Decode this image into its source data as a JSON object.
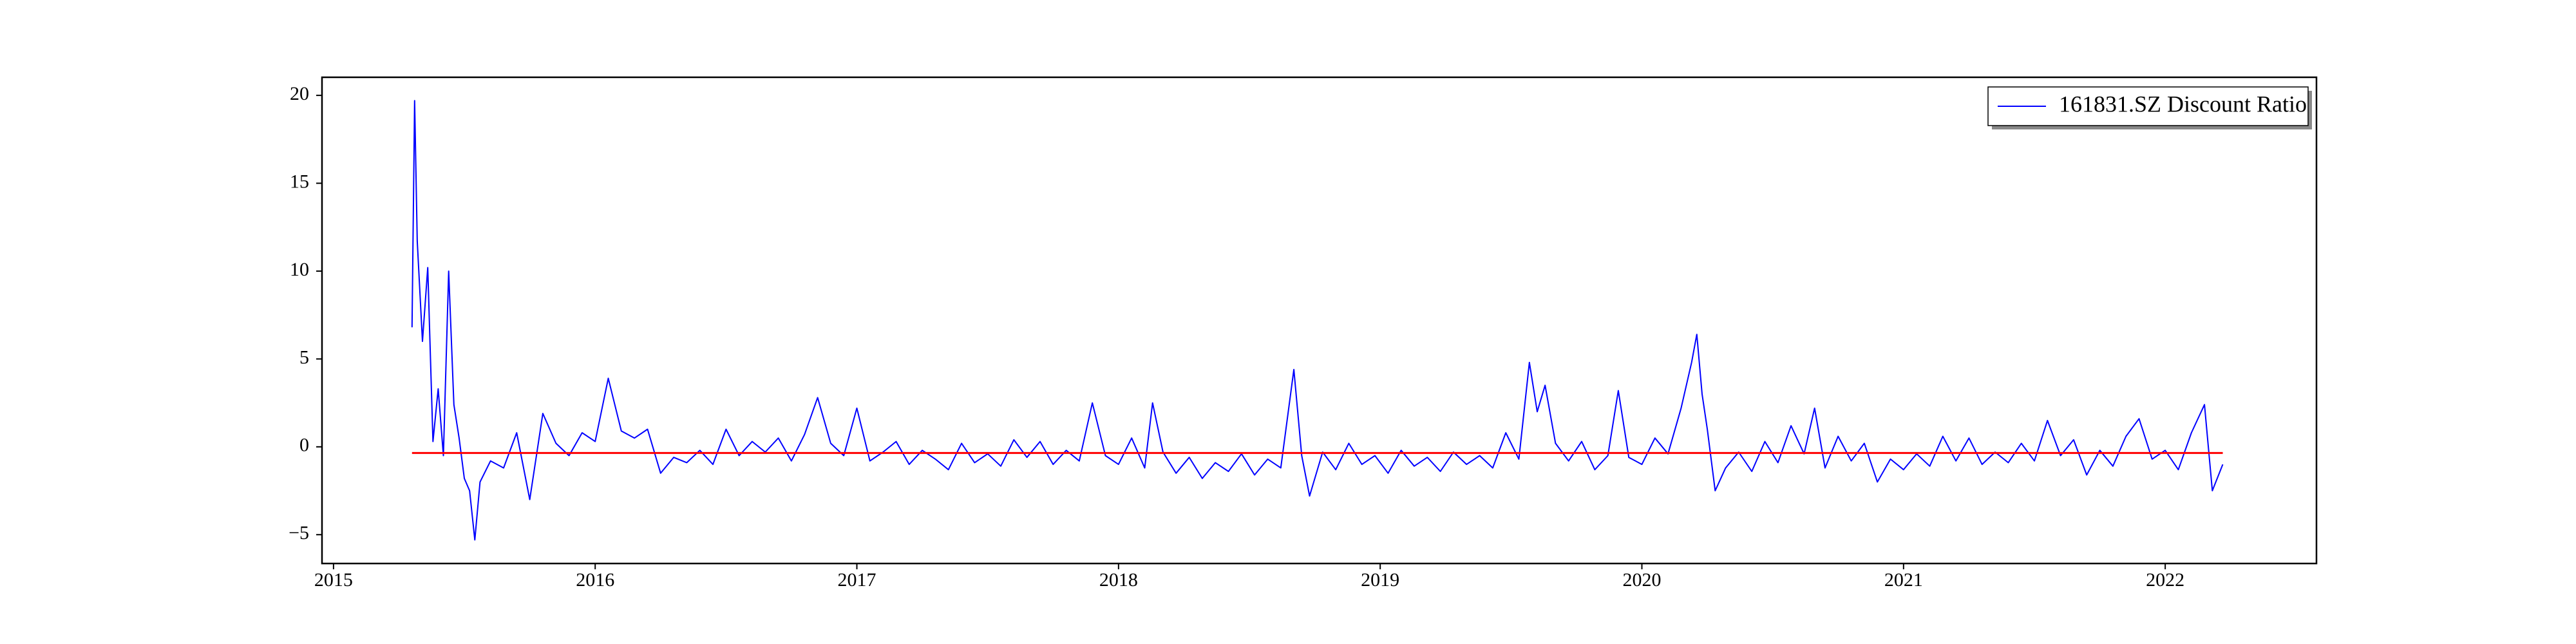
{
  "chart_data": {
    "type": "line",
    "x": [
      2015.3,
      2015.31,
      2015.32,
      2015.34,
      2015.36,
      2015.38,
      2015.4,
      2015.42,
      2015.44,
      2015.46,
      2015.48,
      2015.5,
      2015.52,
      2015.54,
      2015.56,
      2015.6,
      2015.65,
      2015.7,
      2015.75,
      2015.8,
      2015.85,
      2015.9,
      2015.95,
      2016.0,
      2016.05,
      2016.1,
      2016.15,
      2016.2,
      2016.25,
      2016.3,
      2016.35,
      2016.4,
      2016.45,
      2016.5,
      2016.55,
      2016.6,
      2016.65,
      2016.7,
      2016.75,
      2016.8,
      2016.85,
      2016.9,
      2016.95,
      2017.0,
      2017.05,
      2017.1,
      2017.15,
      2017.2,
      2017.25,
      2017.3,
      2017.35,
      2017.4,
      2017.45,
      2017.5,
      2017.55,
      2017.6,
      2017.65,
      2017.7,
      2017.75,
      2017.8,
      2017.85,
      2017.9,
      2017.95,
      2018.0,
      2018.05,
      2018.1,
      2018.13,
      2018.17,
      2018.22,
      2018.27,
      2018.32,
      2018.37,
      2018.42,
      2018.47,
      2018.52,
      2018.57,
      2018.62,
      2018.67,
      2018.7,
      2018.73,
      2018.78,
      2018.83,
      2018.88,
      2018.93,
      2018.98,
      2019.03,
      2019.08,
      2019.13,
      2019.18,
      2019.23,
      2019.28,
      2019.33,
      2019.38,
      2019.43,
      2019.48,
      2019.53,
      2019.57,
      2019.6,
      2019.63,
      2019.67,
      2019.72,
      2019.77,
      2019.82,
      2019.87,
      2019.91,
      2019.95,
      2020.0,
      2020.05,
      2020.1,
      2020.15,
      2020.19,
      2020.21,
      2020.23,
      2020.25,
      2020.28,
      2020.32,
      2020.37,
      2020.42,
      2020.47,
      2020.52,
      2020.57,
      2020.62,
      2020.66,
      2020.7,
      2020.75,
      2020.8,
      2020.85,
      2020.9,
      2020.95,
      2021.0,
      2021.05,
      2021.1,
      2021.15,
      2021.2,
      2021.25,
      2021.3,
      2021.35,
      2021.4,
      2021.45,
      2021.5,
      2021.55,
      2021.6,
      2021.65,
      2021.7,
      2021.75,
      2021.8,
      2021.85,
      2021.9,
      2021.95,
      2022.0,
      2022.05,
      2022.1,
      2022.15,
      2022.18,
      2022.22
    ],
    "series": [
      {
        "name": "161831.SZ Discount Ratio",
        "color": "#0000ff",
        "values": [
          6.8,
          19.7,
          11.7,
          6,
          10.2,
          0.3,
          3.3,
          -0.5,
          10,
          2.4,
          0.5,
          -1.8,
          -2.5,
          -5.3,
          -2,
          -0.8,
          -1.2,
          0.8,
          -3,
          1.9,
          0.2,
          -0.5,
          0.8,
          0.3,
          3.9,
          0.9,
          0.5,
          1,
          -1.5,
          -0.6,
          -0.9,
          -0.2,
          -1.0,
          1.0,
          -0.5,
          0.3,
          -0.3,
          0.5,
          -0.8,
          0.7,
          2.8,
          0.2,
          -0.5,
          2.2,
          -0.8,
          -0.3,
          0.3,
          -1.0,
          -0.2,
          -0.7,
          -1.3,
          0.2,
          -0.9,
          -0.4,
          -1.1,
          0.4,
          -0.6,
          0.3,
          -1.0,
          -0.2,
          -0.8,
          2.5,
          -0.5,
          -1.0,
          0.5,
          -1.2,
          2.5,
          -0.3,
          -1.5,
          -0.6,
          -1.8,
          -0.9,
          -1.4,
          -0.4,
          -1.6,
          -0.7,
          -1.2,
          4.4,
          -0.5,
          -2.8,
          -0.3,
          -1.3,
          0.2,
          -1.0,
          -0.5,
          -1.5,
          -0.2,
          -1.1,
          -0.6,
          -1.4,
          -0.3,
          -1.0,
          -0.5,
          -1.2,
          0.8,
          -0.7,
          4.8,
          2.0,
          3.5,
          0.2,
          -0.8,
          0.3,
          -1.3,
          -0.5,
          3.2,
          -0.6,
          -1.0,
          0.5,
          -0.4,
          2.2,
          4.8,
          6.4,
          3.0,
          1.0,
          -2.5,
          -1.2,
          -0.3,
          -1.4,
          0.3,
          -0.9,
          1.2,
          -0.4,
          2.2,
          -1.2,
          0.6,
          -0.8,
          0.2,
          -2.0,
          -0.7,
          -1.3,
          -0.4,
          -1.1,
          0.6,
          -0.8,
          0.5,
          -1.0,
          -0.3,
          -0.9,
          0.2,
          -0.8,
          1.5,
          -0.5,
          0.4,
          -1.6,
          -0.2,
          -1.1,
          0.6,
          1.6,
          -0.7,
          -0.2,
          -1.3,
          0.8,
          2.4,
          -2.5,
          -1.0
        ]
      }
    ],
    "mean_line": {
      "value": -0.35,
      "x": [
        2015.3,
        2022.22
      ],
      "color": "#ff0000"
    },
    "xlim": [
      2014.956,
      2022.578
    ],
    "xticks": [
      2015,
      2016,
      2017,
      2018,
      2019,
      2020,
      2021,
      2022
    ],
    "ylim": [
      -6.64,
      21.03
    ],
    "yticks": [
      {
        "value": -5,
        "label": "−5"
      },
      0,
      5,
      10,
      15,
      20
    ],
    "legend": "upper right"
  }
}
